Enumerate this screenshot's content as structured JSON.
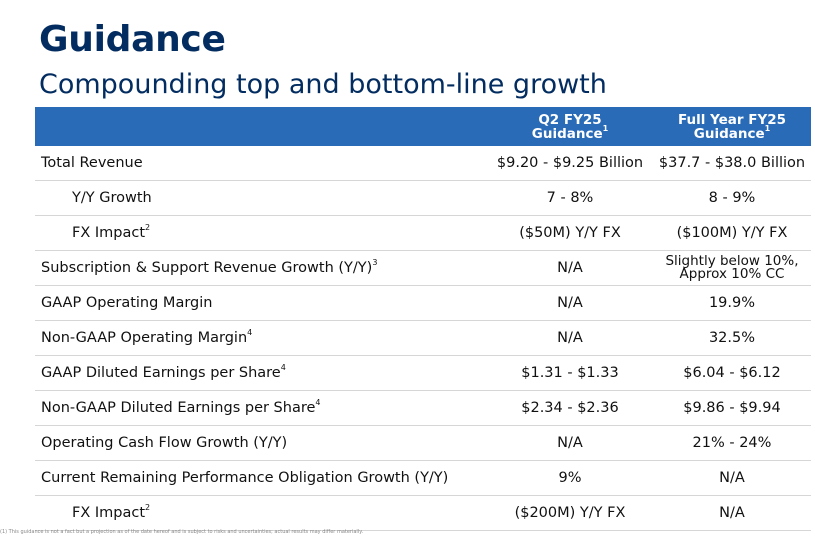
{
  "title": "Guidance",
  "subtitle": "Compounding top and bottom-line growth",
  "header": {
    "col1": "",
    "col2_line1": "Q2 FY25",
    "col2_line2": "Guidance",
    "col2_sup": "1",
    "col3_line1": "Full Year FY25",
    "col3_line2": "Guidance",
    "col3_sup": "1"
  },
  "rows": [
    {
      "label": "Total Revenue",
      "sup": "",
      "q2": "$9.20 - $9.25 Billion",
      "fy": "$37.7 - $38.0 Billion"
    },
    {
      "label": "Y/Y Growth",
      "sup": "",
      "q2": "7 - 8%",
      "fy": "8 - 9%"
    },
    {
      "label": "FX Impact",
      "sup": "2",
      "q2": "($50M) Y/Y FX",
      "fy": "($100M) Y/Y FX"
    },
    {
      "label": "Subscription & Support Revenue Growth (Y/Y)",
      "sup": "3",
      "q2": "N/A",
      "fy_line1": "Slightly below 10%,",
      "fy_line2": "Approx 10% CC"
    },
    {
      "label": "GAAP Operating Margin",
      "sup": "",
      "q2": "N/A",
      "fy": "19.9%"
    },
    {
      "label": "Non-GAAP Operating Margin",
      "sup": "4",
      "q2": "N/A",
      "fy": "32.5%"
    },
    {
      "label": "GAAP Diluted Earnings per Share",
      "sup": "4",
      "q2": "$1.31 - $1.33",
      "fy": "$6.04 - $6.12"
    },
    {
      "label": "Non-GAAP Diluted Earnings per Share",
      "sup": "4",
      "q2": "$2.34 - $2.36",
      "fy": "$9.86 - $9.94"
    },
    {
      "label": "Operating Cash Flow Growth (Y/Y)",
      "sup": "",
      "q2": "N/A",
      "fy": "21% - 24%"
    },
    {
      "label": "Current Remaining Performance Obligation Growth (Y/Y)",
      "sup": "",
      "q2": "9%",
      "fy": "N/A"
    },
    {
      "label": "FX Impact",
      "sup": "2",
      "q2": "($200M) Y/Y FX",
      "fy": "N/A"
    }
  ],
  "footnote": "(1) This guidance is not a fact but a projection as of the date hereof and is subject to risks and uncertainties; actual results may differ materially."
}
